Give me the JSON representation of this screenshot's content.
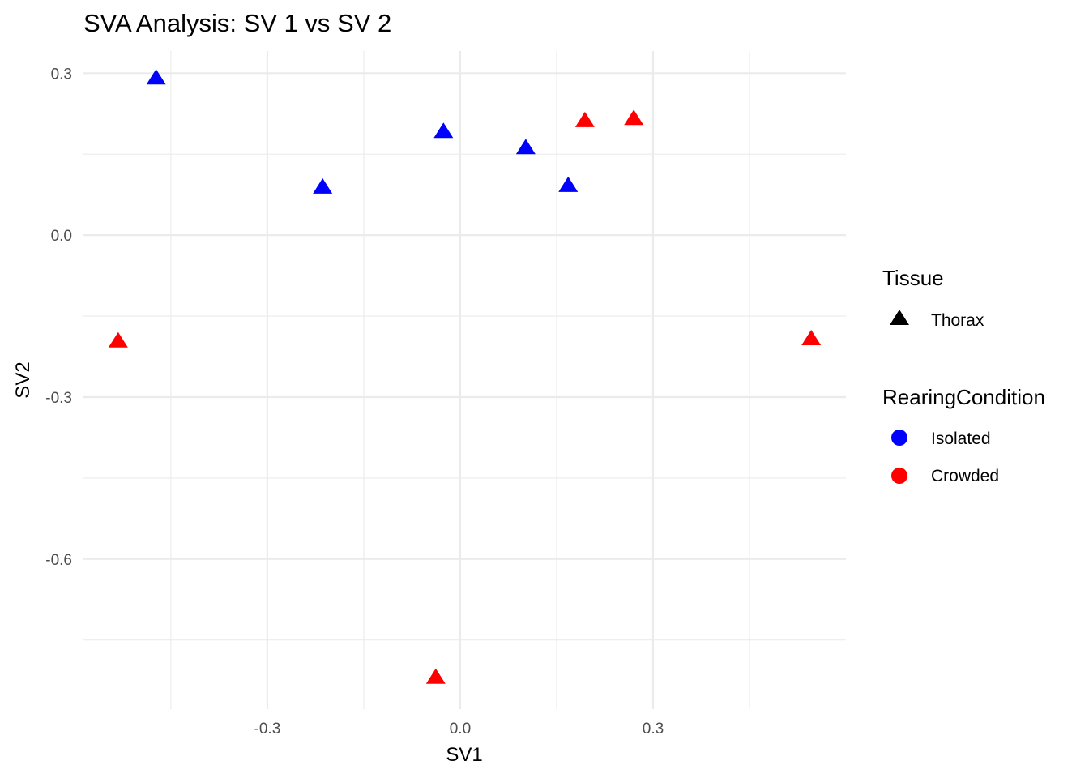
{
  "chart_data": {
    "type": "scatter",
    "title": "SVA Analysis: SV 1  vs SV 2",
    "xlabel": "SV1",
    "ylabel": "SV2",
    "xlim": [
      -0.586,
      0.6
    ],
    "ylim": [
      -0.878,
      0.341
    ],
    "x_ticks": [
      -0.3,
      0.0,
      0.3
    ],
    "x_tick_labels": [
      "-0.3",
      "0.0",
      "0.3"
    ],
    "x_minor": [
      -0.45,
      -0.15,
      0.15,
      0.45
    ],
    "y_ticks": [
      0.3,
      0.0,
      -0.3,
      -0.6
    ],
    "y_tick_labels": [
      "0.3",
      "0.0",
      "-0.3",
      "-0.6"
    ],
    "y_minor": [
      0.15,
      -0.15,
      -0.45,
      -0.75
    ],
    "grid": true,
    "legend_position": "right",
    "series": [
      {
        "name": "Isolated",
        "color": "#0000ff",
        "shape": "triangle",
        "points": [
          [
            -0.473,
            0.291
          ],
          [
            -0.214,
            0.089
          ],
          [
            -0.026,
            0.192
          ],
          [
            0.102,
            0.162
          ],
          [
            0.168,
            0.092
          ]
        ]
      },
      {
        "name": "Crowded",
        "color": "#ff0000",
        "shape": "triangle",
        "points": [
          [
            -0.532,
            -0.196
          ],
          [
            -0.038,
            -0.819
          ],
          [
            0.194,
            0.212
          ],
          [
            0.27,
            0.216
          ],
          [
            0.546,
            -0.192
          ]
        ]
      }
    ],
    "legends": [
      {
        "title": "Tissue",
        "items": [
          {
            "label": "Thorax",
            "shape": "triangle",
            "color": "#000000"
          }
        ]
      },
      {
        "title": "RearingCondition",
        "items": [
          {
            "label": "Isolated",
            "shape": "circle",
            "color": "#0000ff"
          },
          {
            "label": "Crowded",
            "shape": "circle",
            "color": "#ff0000"
          }
        ]
      }
    ]
  }
}
